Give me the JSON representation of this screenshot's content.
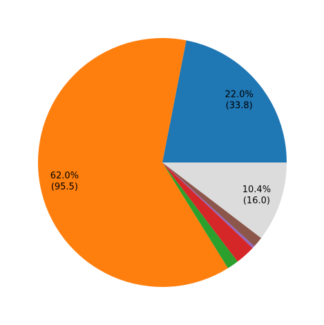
{
  "chart_data": {
    "type": "pie",
    "title": "",
    "start_angle_deg": 0,
    "direction": "counterclockwise",
    "values": [
      33.8,
      95.5,
      2.3,
      4.0,
      0.5,
      2.1,
      16.0
    ],
    "colors": [
      "#1f77b4",
      "#ff7f0e",
      "#2ca02c",
      "#d62728",
      "#9467bd",
      "#8c564b",
      "#dcdcdc"
    ],
    "slice_labels": [
      {
        "index": 0,
        "percent": "22.0%",
        "value": "(33.8)"
      },
      {
        "index": 1,
        "percent": "62.0%",
        "value": "(95.5)"
      },
      {
        "index": 6,
        "percent": "10.4%",
        "value": "(16.0)"
      }
    ]
  }
}
